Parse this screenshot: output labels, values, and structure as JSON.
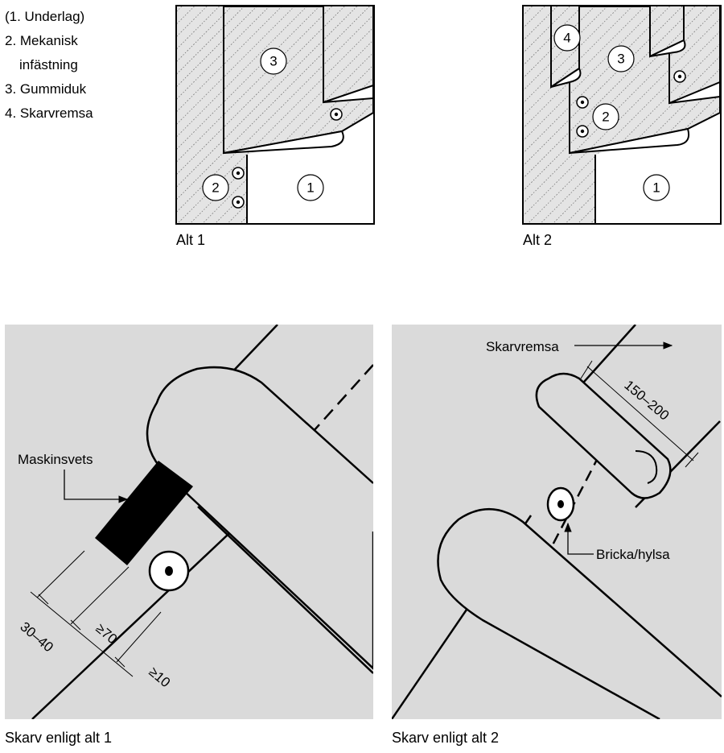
{
  "legend": {
    "item1": "(1. Underlag)",
    "item2": "2. Mekanisk",
    "item2b": "infästning",
    "item3": "3. Gummiduk",
    "item4": "4. Skarvremsa"
  },
  "top_left": {
    "caption": "Alt 1",
    "n3": "3",
    "n2": "2",
    "n1": "1"
  },
  "top_right": {
    "caption": "Alt 2",
    "n4": "4",
    "n3": "3",
    "n2": "2",
    "n1": "1"
  },
  "bottom_left": {
    "caption": "Skarv enligt alt 1",
    "weld_label": "Maskinsvets",
    "dim1": "30–40",
    "dim2": "≥70",
    "dim3": "≥10"
  },
  "bottom_right": {
    "caption": "Skarv enligt alt 2",
    "strip_label": "Skarvremsa",
    "dim": "150–200",
    "washer_label": "Bricka/hylsa"
  },
  "colors": {
    "panel_gray": "#dadada",
    "hatch": "#555555",
    "line": "#000000"
  }
}
